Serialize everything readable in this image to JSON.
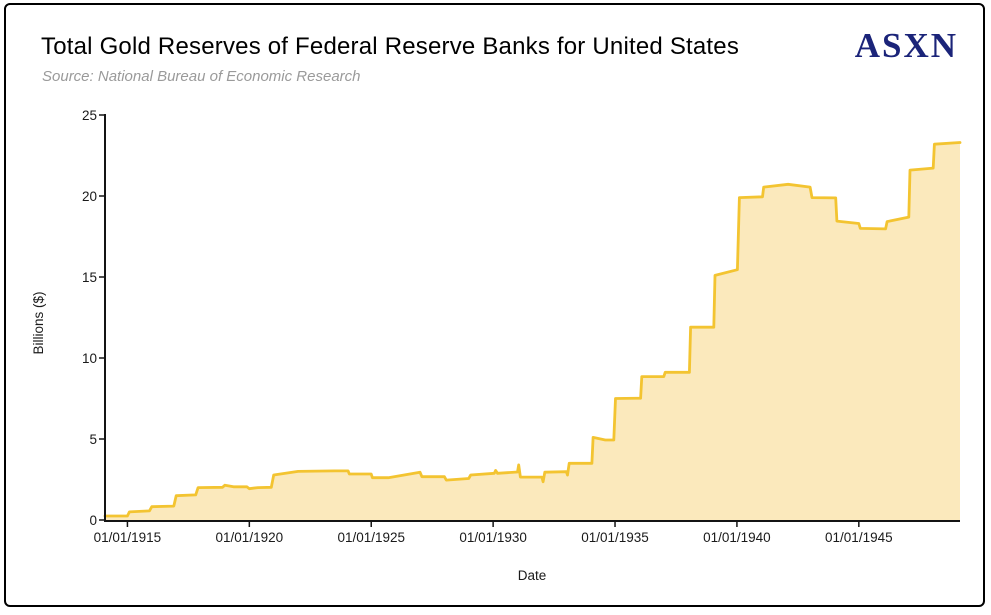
{
  "header": {
    "title": "Total Gold Reserves of Federal Reserve Banks for United States",
    "source": "Source: National Bureau of Economic Research",
    "logo_text": "ASXN"
  },
  "colors": {
    "line": "#F3C431",
    "fill": "#FBE9BC",
    "axis": "#141414",
    "tick_text": "#1a1a1a",
    "logo": "#1b2479",
    "subtitle": "#9a9a9a"
  },
  "chart_data": {
    "type": "area",
    "title": "Total Gold Reserves of Federal Reserve Banks for United States",
    "subtitle": "Source: National Bureau of Economic Research",
    "xlabel": "Date",
    "ylabel": "Billions ($)",
    "x_ticks": [
      "01/01/1915",
      "01/01/1920",
      "01/01/1925",
      "01/01/1930",
      "01/01/1935",
      "01/01/1940",
      "01/01/1945"
    ],
    "x_tick_years": [
      1915,
      1920,
      1925,
      1930,
      1935,
      1940,
      1945
    ],
    "y_ticks": [
      0,
      5,
      10,
      15,
      20,
      25
    ],
    "xlim": [
      1914.08,
      1949.15
    ],
    "ylim": [
      0,
      25
    ],
    "grid": false,
    "legend": "none",
    "units": "billions of dollars",
    "points": [
      [
        1914.08,
        0.25
      ],
      [
        1915.0,
        0.25
      ],
      [
        1915.08,
        0.5
      ],
      [
        1915.9,
        0.56
      ],
      [
        1916.0,
        0.82
      ],
      [
        1916.9,
        0.86
      ],
      [
        1917.0,
        1.5
      ],
      [
        1917.8,
        1.55
      ],
      [
        1917.9,
        2.0
      ],
      [
        1918.9,
        2.02
      ],
      [
        1919.0,
        2.15
      ],
      [
        1919.35,
        2.05
      ],
      [
        1919.9,
        2.05
      ],
      [
        1920.0,
        1.93
      ],
      [
        1920.35,
        2.0
      ],
      [
        1920.9,
        2.02
      ],
      [
        1921.0,
        2.78
      ],
      [
        1922.0,
        3.0
      ],
      [
        1923.5,
        3.03
      ],
      [
        1924.05,
        3.03
      ],
      [
        1924.1,
        2.84
      ],
      [
        1925.0,
        2.84
      ],
      [
        1925.05,
        2.61
      ],
      [
        1925.7,
        2.61
      ],
      [
        1927.0,
        2.95
      ],
      [
        1927.08,
        2.67
      ],
      [
        1928.0,
        2.67
      ],
      [
        1928.08,
        2.46
      ],
      [
        1929.0,
        2.56
      ],
      [
        1929.08,
        2.78
      ],
      [
        1930.05,
        2.88
      ],
      [
        1930.1,
        3.06
      ],
      [
        1930.18,
        2.88
      ],
      [
        1931.0,
        2.96
      ],
      [
        1931.05,
        3.4
      ],
      [
        1931.12,
        2.65
      ],
      [
        1932.0,
        2.65
      ],
      [
        1932.05,
        2.36
      ],
      [
        1932.12,
        2.95
      ],
      [
        1933.0,
        2.98
      ],
      [
        1933.05,
        2.78
      ],
      [
        1933.12,
        3.5
      ],
      [
        1934.05,
        3.5
      ],
      [
        1934.1,
        5.1
      ],
      [
        1934.6,
        4.94
      ],
      [
        1934.95,
        4.94
      ],
      [
        1935.02,
        7.5
      ],
      [
        1936.05,
        7.52
      ],
      [
        1936.1,
        8.85
      ],
      [
        1937.0,
        8.85
      ],
      [
        1937.06,
        9.12
      ],
      [
        1938.05,
        9.12
      ],
      [
        1938.1,
        11.9
      ],
      [
        1939.05,
        11.9
      ],
      [
        1939.1,
        15.1
      ],
      [
        1940.02,
        15.45
      ],
      [
        1940.1,
        19.9
      ],
      [
        1941.05,
        19.95
      ],
      [
        1941.1,
        20.55
      ],
      [
        1942.1,
        20.72
      ],
      [
        1943.0,
        20.55
      ],
      [
        1943.08,
        19.9
      ],
      [
        1944.05,
        19.88
      ],
      [
        1944.1,
        18.45
      ],
      [
        1945.0,
        18.3
      ],
      [
        1945.06,
        18.0
      ],
      [
        1946.1,
        17.97
      ],
      [
        1946.16,
        18.42
      ],
      [
        1947.05,
        18.7
      ],
      [
        1947.1,
        21.6
      ],
      [
        1948.05,
        21.72
      ],
      [
        1948.1,
        23.2
      ],
      [
        1949.15,
        23.3
      ]
    ]
  }
}
